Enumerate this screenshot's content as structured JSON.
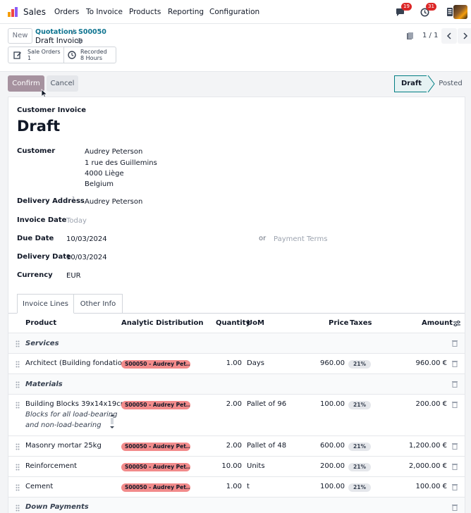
{
  "navbar": {
    "app_name": "Sales",
    "menu": [
      "Orders",
      "To Invoice",
      "Products",
      "Reporting",
      "Configuration"
    ],
    "chat_badge": "19",
    "activity_badge": "31",
    "icons": [
      "sales-logo-icon",
      "chat-icon",
      "activity-clock-icon",
      "phone-icon"
    ]
  },
  "control": {
    "new_label": "New",
    "breadcrumb_parent": "Quotations",
    "breadcrumb_sep": "/",
    "breadcrumb_record": "S00050",
    "current": "Draft Invoice",
    "smart_buttons": [
      {
        "title": "Sale Orders",
        "value": "1",
        "icon": "edit-icon"
      },
      {
        "title": "Recorded",
        "value": "8 Hours",
        "icon": "clock-icon"
      }
    ],
    "pager": "1 / 1"
  },
  "actions": {
    "confirm_label": "Confirm",
    "cancel_label": "Cancel"
  },
  "status": {
    "active": "Draft",
    "next": "Posted",
    "active_color": "#017e84"
  },
  "form": {
    "doc_type": "Customer Invoice",
    "title": "Draft",
    "customer_label": "Customer",
    "customer_lines": [
      "Audrey Peterson",
      "1 rue des Guillemins",
      "4000 Liège",
      "Belgium"
    ],
    "delivery_label": "Delivery Address",
    "delivery_help": "?",
    "delivery_value": "Audrey Peterson",
    "invoice_date_label": "Invoice Date",
    "invoice_date_placeholder": "Today",
    "due_date_label": "Due Date",
    "due_date_value": "10/03/2024",
    "due_or": "or",
    "payment_terms_placeholder": "Payment Terms",
    "delivery_date_label": "Delivery Date",
    "delivery_date_value": "10/03/2024",
    "currency_label": "Currency",
    "currency_value": "EUR"
  },
  "tabs": [
    "Invoice Lines",
    "Other Info"
  ],
  "table": {
    "headers": {
      "product": "Product",
      "analytic": "Analytic Distribution",
      "quantity": "Quantity",
      "uom": "UoM",
      "price": "Price",
      "taxes": "Taxes",
      "amount": "Amount"
    },
    "sections": [
      "Services",
      "Materials",
      "Down Payments"
    ],
    "lines": [
      {
        "product": "Architect (Building fondatio...",
        "analytic": "S00050 - Audrey Pet...",
        "quantity": "1.00",
        "uom": "Days",
        "price": "960.00",
        "tax": "21%",
        "amount": "960.00 €"
      },
      {
        "product": "Building Blocks 39x14x19cm",
        "note1": "Blocks for all load-bearing",
        "note2": "and non-load-bearing",
        "analytic": "S00050 - Audrey Pet...",
        "quantity": "2.00",
        "uom": "Pallet of 96",
        "price": "100.00",
        "tax": "21%",
        "amount": "200.00 €"
      },
      {
        "product": "Masonry mortar 25kg",
        "analytic": "S00050 - Audrey Pet...",
        "quantity": "2.00",
        "uom": "Pallet of 48",
        "price": "600.00",
        "tax": "21%",
        "amount": "1,200.00 €"
      },
      {
        "product": "Reinforcement",
        "analytic": "S00050 - Audrey Pet...",
        "quantity": "10.00",
        "uom": "Units",
        "price": "200.00",
        "tax": "21%",
        "amount": "2,000.00 €"
      },
      {
        "product": "Cement",
        "analytic": "S00050 - Audrey Pet...",
        "quantity": "1.00",
        "uom": "t",
        "price": "100.00",
        "tax": "21%",
        "amount": "100.00 €"
      }
    ]
  }
}
